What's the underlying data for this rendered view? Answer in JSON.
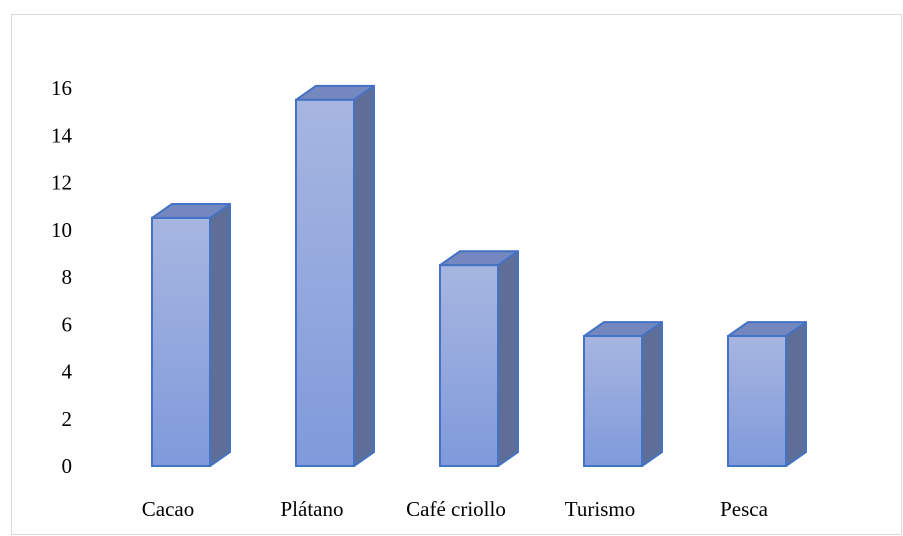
{
  "chart_data": {
    "type": "bar",
    "style": "3d-column",
    "title": "",
    "xlabel": "",
    "ylabel": "",
    "categories": [
      "Cacao",
      "Plátano",
      "Café criollo",
      "Turismo",
      "Pesca"
    ],
    "values": [
      10,
      15,
      8,
      5,
      5
    ],
    "ylim": [
      0,
      16
    ],
    "yticks": [
      0,
      2,
      4,
      6,
      8,
      10,
      12,
      14,
      16
    ],
    "grid": false,
    "legend": "none",
    "colors": {
      "front_top": "#a7b6e0",
      "front_bottom": "#7f9adb",
      "side": "#5f6e96",
      "top": "#7487bf",
      "edge": "#4472c4"
    }
  }
}
